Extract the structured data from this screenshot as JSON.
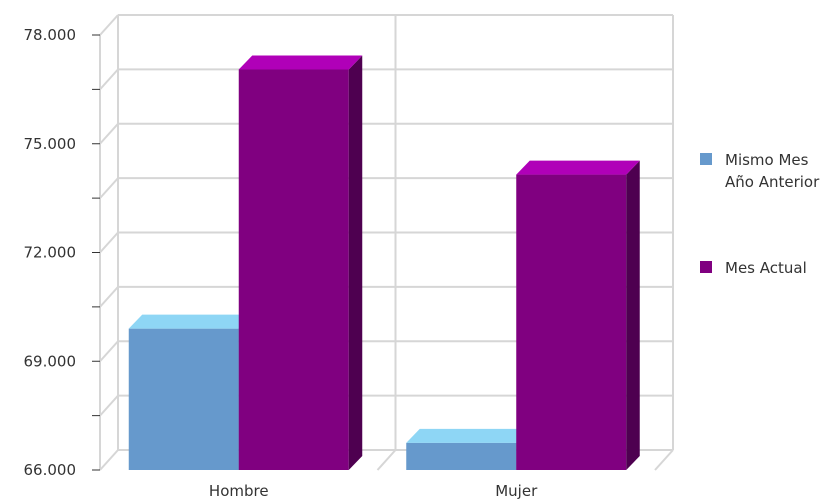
{
  "chart_data": {
    "type": "bar",
    "style": "3d-grouped",
    "categories": [
      "Hombre",
      "Mujer"
    ],
    "series": [
      {
        "name": "Mismo Mes Año Anterior",
        "legend_lines": [
          "Mismo Mes",
          "Año Anterior"
        ],
        "values": [
          69900,
          66750
        ],
        "color": "#6699cc",
        "top_color": "#8ed6f5",
        "side_color": "#4d7aa8"
      },
      {
        "name": "Mes Actual",
        "legend_lines": [
          "Mes Actual"
        ],
        "values": [
          77050,
          74150
        ],
        "color": "#800080",
        "top_color": "#b000b8",
        "side_color": "#4e0050"
      }
    ],
    "y_ticks": [
      "66.000",
      "69.000",
      "72.000",
      "75.000",
      "78.000"
    ],
    "y_tick_values": [
      66000,
      69000,
      72000,
      75000,
      78000
    ],
    "ylim": [
      66000,
      78000
    ],
    "grid": true,
    "legend_position": "right"
  }
}
